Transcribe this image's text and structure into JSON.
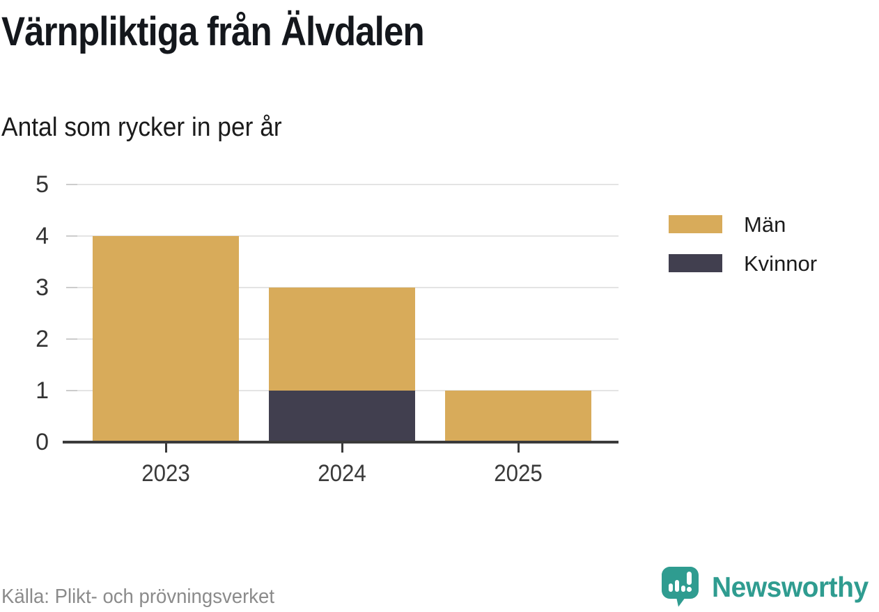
{
  "header": {
    "title": "Värnpliktiga från Älvdalen",
    "subtitle": "Antal som rycker in per år"
  },
  "chart_data": {
    "type": "bar",
    "stacked": true,
    "title": "Värnpliktiga från Älvdalen",
    "subtitle": "Antal som rycker in per år",
    "categories": [
      "2023",
      "2024",
      "2025"
    ],
    "series": [
      {
        "name": "Män",
        "color": "#d8ab5a",
        "values": [
          4,
          2,
          1
        ]
      },
      {
        "name": "Kvinnor",
        "color": "#413f4f",
        "values": [
          0,
          1,
          0
        ]
      }
    ],
    "totals": [
      4,
      3,
      1
    ],
    "xlabel": "",
    "ylabel": "",
    "ylim": [
      0,
      5
    ],
    "yticks": [
      0,
      1,
      2,
      3,
      4,
      5
    ],
    "grid": "horizontal",
    "legend_position": "right"
  },
  "footer": {
    "source": "Källa: Plikt- och prövningsverket",
    "brand": "Newsworthy"
  },
  "colors": {
    "men": "#d8ab5a",
    "women": "#413f4f",
    "teal": "#2f9c90",
    "grid": "#e4e4e4",
    "axis": "#3b3b3b",
    "source_text": "#8b8b8b"
  }
}
